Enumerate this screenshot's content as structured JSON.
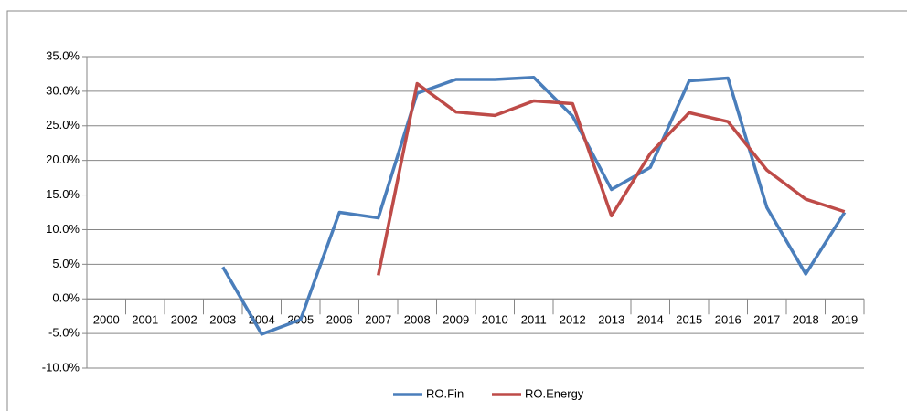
{
  "chart_data": {
    "type": "line",
    "categories": [
      "2000",
      "2001",
      "2002",
      "2003",
      "2004",
      "2005",
      "2006",
      "2007",
      "2008",
      "2009",
      "2010",
      "2011",
      "2012",
      "2013",
      "2014",
      "2015",
      "2016",
      "2017",
      "2018",
      "2019"
    ],
    "series": [
      {
        "name": "RO.Fin",
        "color": "#4a7ebb",
        "values": [
          null,
          null,
          null,
          4.6,
          -5.1,
          -3.0,
          12.5,
          11.7,
          29.7,
          31.7,
          31.7,
          32.0,
          26.4,
          15.8,
          19.0,
          31.5,
          31.9,
          13.2,
          3.6,
          12.5
        ]
      },
      {
        "name": "RO.Energy",
        "color": "#be4b48",
        "values": [
          null,
          null,
          null,
          null,
          null,
          null,
          null,
          3.4,
          31.1,
          27.0,
          26.5,
          28.6,
          28.2,
          12.0,
          21.0,
          26.9,
          25.6,
          18.6,
          14.4,
          12.6
        ]
      }
    ],
    "ylim": [
      -10,
      35
    ],
    "yticks": [
      {
        "value": -10,
        "label": "-10.0%"
      },
      {
        "value": -5,
        "label": "-5.0%"
      },
      {
        "value": 0,
        "label": "0.0%"
      },
      {
        "value": 5,
        "label": "5.0%"
      },
      {
        "value": 10,
        "label": "10.0%"
      },
      {
        "value": 15,
        "label": "15.0%"
      },
      {
        "value": 20,
        "label": "20.0%"
      },
      {
        "value": 25,
        "label": "25.0%"
      },
      {
        "value": 30,
        "label": "30.0%"
      },
      {
        "value": 35,
        "label": "35.0%"
      }
    ],
    "grid": true,
    "legend": "bottom"
  }
}
